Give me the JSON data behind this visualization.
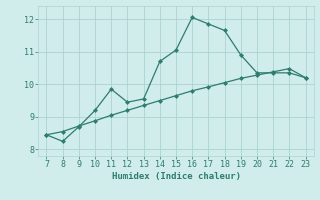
{
  "xlabel": "Humidex (Indice chaleur)",
  "ylabel": "",
  "x_values": [
    7,
    8,
    9,
    10,
    11,
    12,
    13,
    14,
    15,
    16,
    17,
    18,
    19,
    20,
    21,
    22,
    23
  ],
  "y_data": [
    8.45,
    8.25,
    8.7,
    9.2,
    9.85,
    9.45,
    9.55,
    10.7,
    11.05,
    12.05,
    11.85,
    11.65,
    10.9,
    10.35,
    10.35,
    10.35,
    10.2
  ],
  "y_trend": [
    8.45,
    8.55,
    8.72,
    8.88,
    9.05,
    9.2,
    9.35,
    9.5,
    9.65,
    9.8,
    9.92,
    10.05,
    10.18,
    10.28,
    10.38,
    10.48,
    10.2
  ],
  "line_color": "#2e7d6e",
  "bg_color": "#d0eceb",
  "grid_color": "#aad4cf",
  "ylim": [
    7.8,
    12.4
  ],
  "xlim": [
    6.5,
    23.5
  ],
  "yticks": [
    8,
    9,
    10,
    11,
    12
  ],
  "xticks": [
    7,
    8,
    9,
    10,
    11,
    12,
    13,
    14,
    15,
    16,
    17,
    18,
    19,
    20,
    21,
    22,
    23
  ]
}
